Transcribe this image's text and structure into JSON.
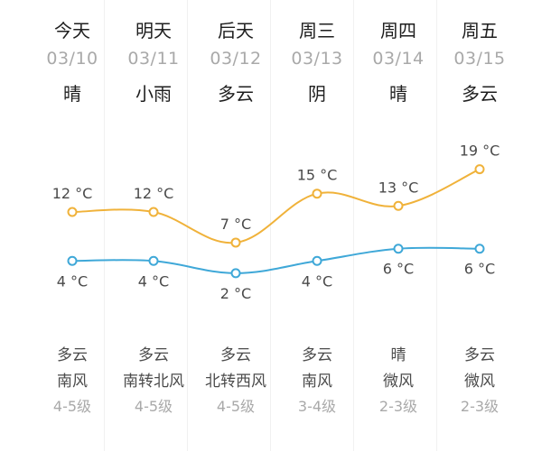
{
  "unit": "°C",
  "colors": {
    "high_line": "#f0b23a",
    "low_line": "#3fa8d8",
    "column_alt_bg": "#fbfbfb"
  },
  "days": [
    {
      "label": "今天",
      "date": "03/10",
      "condition": "晴",
      "high": 12,
      "low": 4,
      "night_condition": "多云",
      "wind_direction": "南风",
      "wind_level": "4-5级"
    },
    {
      "label": "明天",
      "date": "03/11",
      "condition": "小雨",
      "high": 12,
      "low": 4,
      "night_condition": "多云",
      "wind_direction": "南转北风",
      "wind_level": "4-5级"
    },
    {
      "label": "后天",
      "date": "03/12",
      "condition": "多云",
      "high": 7,
      "low": 2,
      "night_condition": "多云",
      "wind_direction": "北转西风",
      "wind_level": "4-5级"
    },
    {
      "label": "周三",
      "date": "03/13",
      "condition": "阴",
      "high": 15,
      "low": 4,
      "night_condition": "多云",
      "wind_direction": "南风",
      "wind_level": "3-4级"
    },
    {
      "label": "周四",
      "date": "03/14",
      "condition": "晴",
      "high": 13,
      "low": 6,
      "night_condition": "晴",
      "wind_direction": "微风",
      "wind_level": "2-3级"
    },
    {
      "label": "周五",
      "date": "03/15",
      "condition": "多云",
      "high": 19,
      "low": 6,
      "night_condition": "多云",
      "wind_direction": "微风",
      "wind_level": "2-3级"
    }
  ],
  "chart_data": {
    "type": "line",
    "categories": [
      "今天",
      "明天",
      "后天",
      "周三",
      "周四",
      "周五"
    ],
    "series": [
      {
        "values": [
          12,
          12,
          7,
          15,
          13,
          19
        ]
      },
      {
        "values": [
          4,
          4,
          2,
          4,
          6,
          6
        ]
      }
    ]
  }
}
